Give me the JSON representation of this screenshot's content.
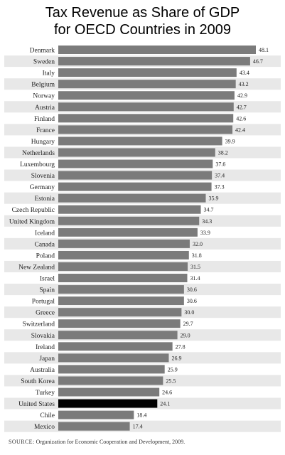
{
  "title_line_1": "Tax Revenue as Share of GDP",
  "title_line_2": "for OECD Countries in 2009",
  "source_label": "SOURCE:",
  "source_text": "Organization for Economic Cooperation and Development, 2009.",
  "colors": {
    "bar_default": "#7b7b7b",
    "bar_highlight": "#000000",
    "stripe": "#e8e8e8",
    "label_text": "#222222"
  },
  "chart_data": {
    "type": "bar",
    "orientation": "horizontal",
    "title": "Tax Revenue as Share of GDP for OECD Countries in 2009",
    "xlim": [
      0,
      50
    ],
    "grid": false,
    "highlight": "United States",
    "categories": [
      "Denmark",
      "Sweden",
      "Italy",
      "Belgium",
      "Norway",
      "Austria",
      "Finland",
      "France",
      "Hungary",
      "Netherlands",
      "Luxembourg",
      "Slovenia",
      "Germany",
      "Estonia",
      "Czech Republic",
      "United Kingdom",
      "Iceland",
      "Canada",
      "Poland",
      "New Zealand",
      "Israel",
      "Spain",
      "Portugal",
      "Greece",
      "Switzerland",
      "Slovakia",
      "Ireland",
      "Japan",
      "Australia",
      "South Korea",
      "Turkey",
      "United States",
      "Chile",
      "Mexico"
    ],
    "values": [
      48.1,
      46.7,
      43.4,
      43.2,
      42.9,
      42.7,
      42.6,
      42.4,
      39.9,
      38.2,
      37.6,
      37.4,
      37.3,
      35.9,
      34.7,
      34.3,
      33.9,
      32.0,
      31.8,
      31.5,
      31.4,
      30.6,
      30.6,
      30.0,
      29.7,
      29.0,
      27.8,
      26.9,
      25.9,
      25.5,
      24.6,
      24.1,
      18.4,
      17.4
    ],
    "value_labels": [
      "48.1",
      "46.7",
      "43.4",
      "43.2",
      "42.9",
      "42.7",
      "42.6",
      "42.4",
      "39.9",
      "38.2",
      "37.6",
      "37.4",
      "37.3",
      "35.9",
      "34.7",
      "34.3",
      "33.9",
      "32.0",
      "31.8",
      "31.5",
      "31.4",
      "30.6",
      "30.6",
      "30.0",
      "29.7",
      "29.0",
      "27.8",
      "26.9",
      "25.9",
      "25.5",
      "24.6",
      "24.1",
      "18.4",
      "17.4"
    ]
  }
}
